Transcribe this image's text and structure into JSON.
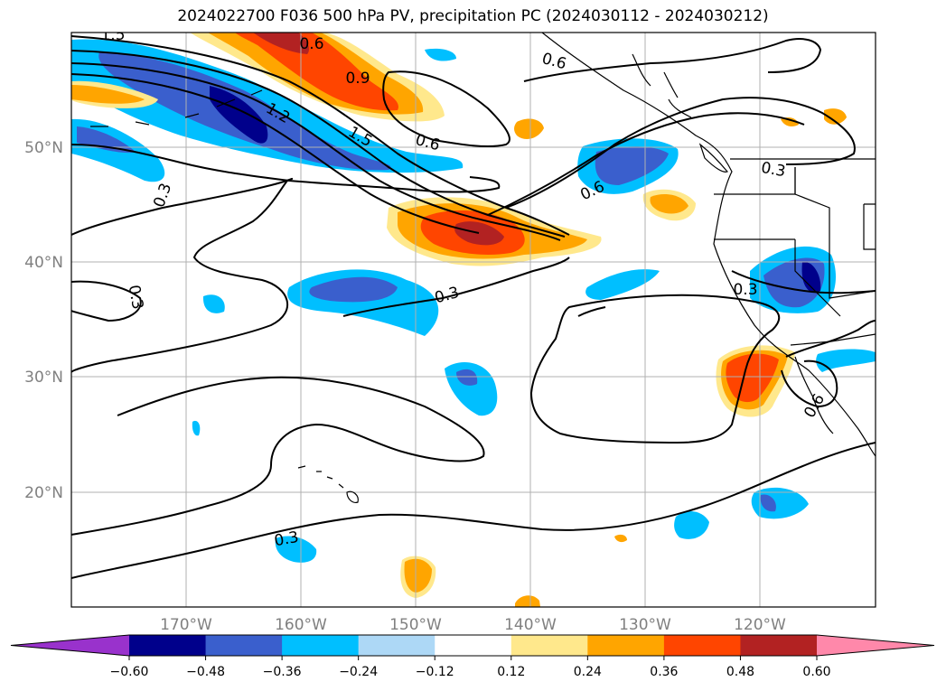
{
  "title": "2024022700 F036 500 hPa PV, precipitation PC (2024030112 - 2024030212)",
  "lon_ticks": [
    "170°W",
    "160°W",
    "150°W",
    "140°W",
    "130°W",
    "120°W"
  ],
  "lat_ticks": [
    "50°N",
    "40°N",
    "30°N",
    "20°N"
  ],
  "contour_labels": [
    "1.5",
    "0.6",
    "0.9",
    "1.2",
    "1.5",
    "0.6",
    "0.6",
    "0.6",
    "0.3",
    "0.3",
    "0.3",
    "0.3",
    "0.3",
    "0.6",
    "0.3"
  ],
  "colorbar": {
    "ticks": [
      "−0.60",
      "−0.48",
      "−0.36",
      "−0.24",
      "−0.12",
      "0.12",
      "0.24",
      "0.36",
      "0.48",
      "0.60"
    ],
    "colors": [
      "#9932cc",
      "#00008b",
      "#3a5fcd",
      "#00bfff",
      "#add8f6",
      "#ffffff",
      "#ffe88c",
      "#ffa500",
      "#ff4500",
      "#b22222",
      "#ff88aa"
    ]
  }
}
